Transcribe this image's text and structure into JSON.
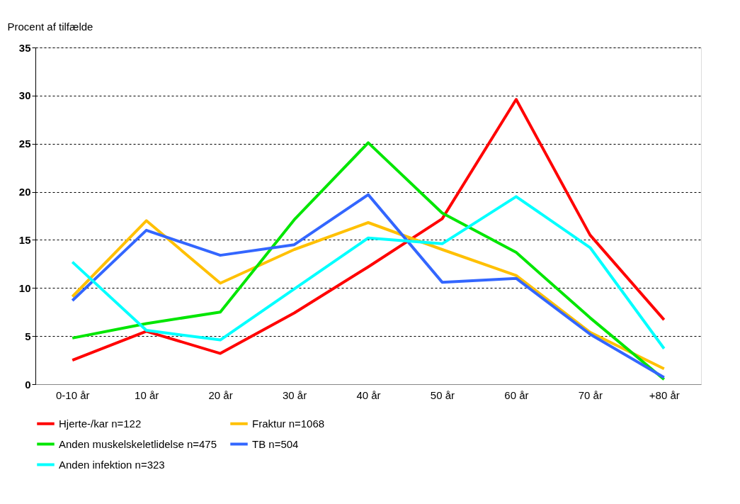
{
  "chart_data": {
    "type": "line",
    "ylabel": "Procent af tilfælde",
    "categories": [
      "0-10 år",
      "10 år",
      "20 år",
      "30 år",
      "40 år",
      "50 år",
      "60 år",
      "70 år",
      "+80 år"
    ],
    "series": [
      {
        "name": "Hjerte-/kar n=122",
        "color": "#ff0000",
        "values": [
          2.5,
          5.5,
          3.2,
          7.4,
          12.2,
          17.2,
          29.6,
          15.5,
          6.7
        ]
      },
      {
        "name": "Fraktur n=1068",
        "color": "#ffc000",
        "values": [
          9.1,
          17.0,
          10.5,
          14.0,
          16.8,
          14.0,
          11.3,
          5.4,
          1.6
        ]
      },
      {
        "name": "Anden muskelskeletlidelse n=475",
        "color": "#00e600",
        "values": [
          4.8,
          6.3,
          7.5,
          17.1,
          25.1,
          17.8,
          13.7,
          6.9,
          0.5
        ]
      },
      {
        "name": "TB n=504",
        "color": "#3366ff",
        "values": [
          8.7,
          16.0,
          13.4,
          14.5,
          19.7,
          10.6,
          11.0,
          5.2,
          0.7
        ]
      },
      {
        "name": "Anden infektion n=323",
        "color": "#00ffff",
        "values": [
          12.7,
          5.6,
          4.6,
          9.9,
          15.2,
          14.6,
          19.5,
          14.2,
          3.7
        ]
      }
    ],
    "ylim": [
      0,
      35
    ],
    "yticks": [
      0,
      5,
      10,
      15,
      20,
      25,
      30,
      35
    ],
    "grid": "y",
    "legend": "bottom",
    "marker": "none",
    "line_style": "solid"
  }
}
